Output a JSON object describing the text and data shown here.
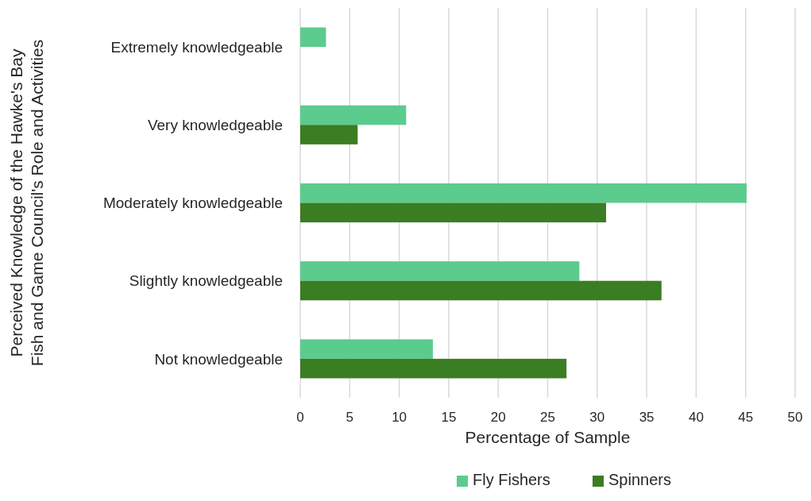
{
  "chart_data": {
    "type": "bar",
    "orientation": "horizontal",
    "categories": [
      "Extremely knowledgeable",
      "Very knowledgeable",
      "Moderately knowledgeable",
      "Slightly knowledgeable",
      "Not knowledgeable"
    ],
    "series": [
      {
        "name": "Fly Fishers",
        "color": "#5ccb8e",
        "values": [
          2.6,
          10.7,
          45.1,
          28.2,
          13.4
        ]
      },
      {
        "name": "Spinners",
        "color": "#3b7d23",
        "values": [
          0,
          5.8,
          30.9,
          36.5,
          26.9
        ]
      }
    ],
    "xlim": [
      0,
      50
    ],
    "xticks": [
      0,
      5,
      10,
      15,
      20,
      25,
      30,
      35,
      40,
      45,
      50
    ],
    "xlabel": "Percentage of Sample",
    "ylabel": "Perceived Knowledge of the Hawke's Bay Fish and Game Council's Role and Activities",
    "grid": "x",
    "legend": "bottom"
  }
}
